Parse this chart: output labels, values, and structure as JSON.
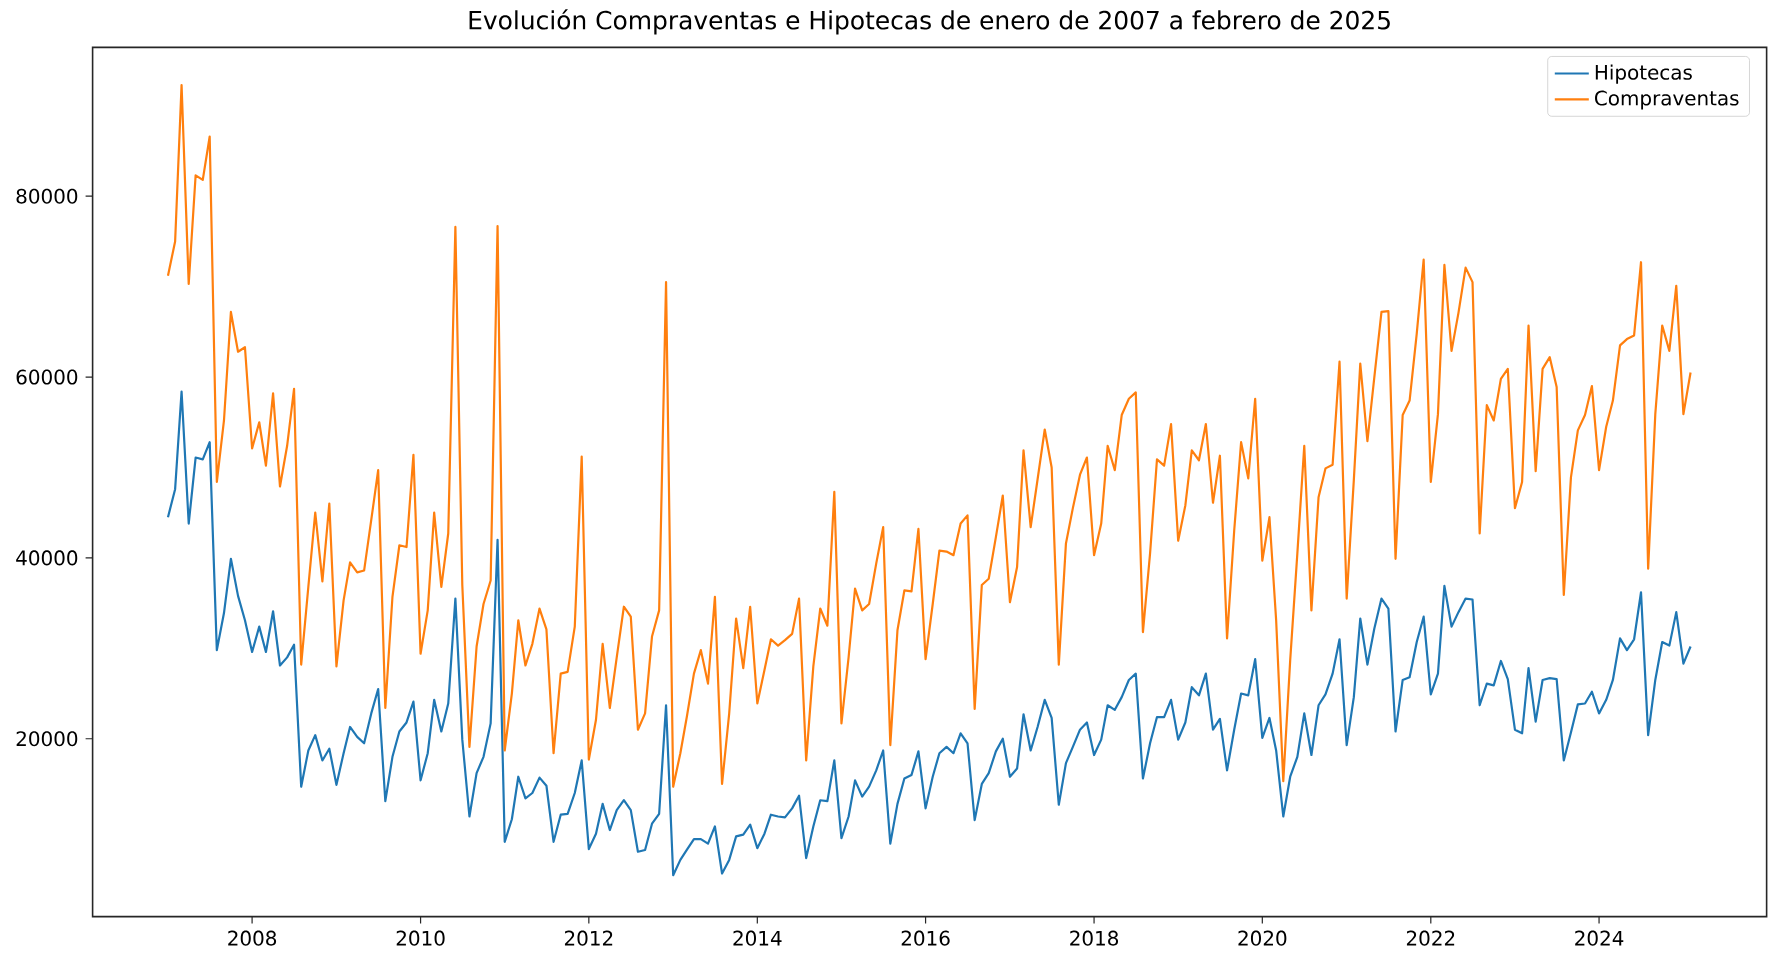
{
  "chart_data": {
    "type": "line",
    "title": "Evolución Compraventas e Hipotecas de enero de 2007 a febrero de 2025",
    "x": [
      "2007-01",
      "2007-02",
      "2007-03",
      "2007-04",
      "2007-05",
      "2007-06",
      "2007-07",
      "2007-08",
      "2007-09",
      "2007-10",
      "2007-11",
      "2007-12",
      "2008-01",
      "2008-02",
      "2008-03",
      "2008-04",
      "2008-05",
      "2008-06",
      "2008-07",
      "2008-08",
      "2008-09",
      "2008-10",
      "2008-11",
      "2008-12",
      "2009-01",
      "2009-02",
      "2009-03",
      "2009-04",
      "2009-05",
      "2009-06",
      "2009-07",
      "2009-08",
      "2009-09",
      "2009-10",
      "2009-11",
      "2009-12",
      "2010-01",
      "2010-02",
      "2010-03",
      "2010-04",
      "2010-05",
      "2010-06",
      "2010-07",
      "2010-08",
      "2010-09",
      "2010-10",
      "2010-11",
      "2010-12",
      "2011-01",
      "2011-02",
      "2011-03",
      "2011-04",
      "2011-05",
      "2011-06",
      "2011-07",
      "2011-08",
      "2011-09",
      "2011-10",
      "2011-11",
      "2011-12",
      "2012-01",
      "2012-02",
      "2012-03",
      "2012-04",
      "2012-05",
      "2012-06",
      "2012-07",
      "2012-08",
      "2012-09",
      "2012-10",
      "2012-11",
      "2012-12",
      "2013-01",
      "2013-02",
      "2013-03",
      "2013-04",
      "2013-05",
      "2013-06",
      "2013-07",
      "2013-08",
      "2013-09",
      "2013-10",
      "2013-11",
      "2013-12",
      "2014-01",
      "2014-02",
      "2014-03",
      "2014-04",
      "2014-05",
      "2014-06",
      "2014-07",
      "2014-08",
      "2014-09",
      "2014-10",
      "2014-11",
      "2014-12",
      "2015-01",
      "2015-02",
      "2015-03",
      "2015-04",
      "2015-05",
      "2015-06",
      "2015-07",
      "2015-08",
      "2015-09",
      "2015-10",
      "2015-11",
      "2015-12",
      "2016-01",
      "2016-02",
      "2016-03",
      "2016-04",
      "2016-05",
      "2016-06",
      "2016-07",
      "2016-08",
      "2016-09",
      "2016-10",
      "2016-11",
      "2016-12",
      "2017-01",
      "2017-02",
      "2017-03",
      "2017-04",
      "2017-05",
      "2017-06",
      "2017-07",
      "2017-08",
      "2017-09",
      "2017-10",
      "2017-11",
      "2017-12",
      "2018-01",
      "2018-02",
      "2018-03",
      "2018-04",
      "2018-05",
      "2018-06",
      "2018-07",
      "2018-08",
      "2018-09",
      "2018-10",
      "2018-11",
      "2018-12",
      "2019-01",
      "2019-02",
      "2019-03",
      "2019-04",
      "2019-05",
      "2019-06",
      "2019-07",
      "2019-08",
      "2019-09",
      "2019-10",
      "2019-11",
      "2019-12",
      "2020-01",
      "2020-02",
      "2020-03",
      "2020-04",
      "2020-05",
      "2020-06",
      "2020-07",
      "2020-08",
      "2020-09",
      "2020-10",
      "2020-11",
      "2020-12",
      "2021-01",
      "2021-02",
      "2021-03",
      "2021-04",
      "2021-05",
      "2021-06",
      "2021-07",
      "2021-08",
      "2021-09",
      "2021-10",
      "2021-11",
      "2021-12",
      "2022-01",
      "2022-02",
      "2022-03",
      "2022-04",
      "2022-05",
      "2022-06",
      "2022-07",
      "2022-08",
      "2022-09",
      "2022-10",
      "2022-11",
      "2022-12",
      "2023-01",
      "2023-02",
      "2023-03",
      "2023-04",
      "2023-05",
      "2023-06",
      "2023-07",
      "2023-08",
      "2023-09",
      "2023-10",
      "2023-11",
      "2023-12",
      "2024-01",
      "2024-02",
      "2024-03",
      "2024-04",
      "2024-05",
      "2024-06",
      "2024-07",
      "2024-08",
      "2024-09",
      "2024-10",
      "2024-11",
      "2024-12",
      "2025-01",
      "2025-02"
    ],
    "series": [
      {
        "name": "Hipotecas",
        "color": "#1f77b4",
        "values": [
          44500,
          47600,
          58400,
          43800,
          51100,
          50900,
          52800,
          29800,
          33900,
          39900,
          35800,
          33100,
          29600,
          32400,
          29600,
          34100,
          28100,
          29000,
          30400,
          14700,
          18700,
          20400,
          17600,
          18900,
          14900,
          18400,
          21300,
          20200,
          19500,
          22800,
          25500,
          13100,
          18000,
          20800,
          21800,
          24100,
          15400,
          18400,
          24300,
          20800,
          23900,
          35500,
          19900,
          11400,
          16200,
          18000,
          21700,
          42000,
          8600,
          11100,
          15800,
          13400,
          14000,
          15700,
          14800,
          8600,
          11600,
          11700,
          14000,
          17600,
          7800,
          9500,
          12800,
          9900,
          12100,
          13200,
          12100,
          7500,
          7700,
          10600,
          11700,
          23700,
          4900,
          6600,
          7700,
          8900,
          8900,
          8400,
          10300,
          5100,
          6600,
          9200,
          9400,
          10500,
          7900,
          9500,
          11600,
          11400,
          11300,
          12300,
          13700,
          6800,
          10300,
          13200,
          13100,
          17600,
          9000,
          11400,
          15400,
          13600,
          14700,
          16500,
          18700,
          8400,
          12800,
          15600,
          16000,
          18600,
          12300,
          15800,
          18400,
          19100,
          18400,
          20600,
          19500,
          11000,
          15000,
          16200,
          18600,
          20000,
          15800,
          16700,
          22700,
          18700,
          21300,
          24300,
          22300,
          12700,
          17300,
          19100,
          21000,
          21800,
          18200,
          19900,
          23700,
          23200,
          24600,
          26500,
          27200,
          15600,
          19500,
          22400,
          22400,
          24300,
          19900,
          21800,
          25700,
          24800,
          27200,
          21000,
          22200,
          16500,
          21000,
          25000,
          24800,
          28800,
          20100,
          22300,
          18700,
          11400,
          15800,
          18000,
          22800,
          18200,
          23700,
          24900,
          27200,
          31000,
          19300,
          24600,
          33300,
          28200,
          32200,
          35500,
          34400,
          20800,
          26500,
          26800,
          30700,
          33500,
          24900,
          27200,
          36900,
          32400,
          34000,
          35500,
          35400,
          23700,
          26100,
          25900,
          28600,
          26600,
          21000,
          20600,
          27800,
          21900,
          26500,
          26700,
          26600,
          17600,
          20700,
          23800,
          23900,
          25200,
          22800,
          24300,
          26500,
          31100,
          29800,
          31000,
          36200,
          20400,
          26500,
          30700,
          30300,
          34000,
          28300,
          30200
        ]
      },
      {
        "name": "Compraventas",
        "color": "#ff7f0e",
        "values": [
          71200,
          75000,
          92300,
          70300,
          82300,
          81800,
          86600,
          48400,
          55200,
          67200,
          62800,
          63300,
          52100,
          55000,
          50200,
          58200,
          47900,
          52400,
          58700,
          28200,
          36800,
          45000,
          37400,
          46000,
          28000,
          35300,
          39500,
          38400,
          38600,
          44200,
          49700,
          23400,
          35700,
          41400,
          41200,
          51400,
          29400,
          34200,
          45000,
          36800,
          42700,
          76600,
          37000,
          19100,
          30200,
          34900,
          37500,
          76700,
          18700,
          25000,
          33100,
          28100,
          30500,
          34400,
          32100,
          18400,
          27200,
          27400,
          32400,
          51200,
          17700,
          22100,
          30500,
          23400,
          29000,
          34600,
          33500,
          21000,
          22800,
          31300,
          34200,
          70500,
          14700,
          18400,
          22400,
          27200,
          29800,
          26100,
          35700,
          15000,
          22800,
          33300,
          27800,
          34600,
          23900,
          27600,
          31000,
          30300,
          30900,
          31600,
          35500,
          17600,
          28000,
          34400,
          32500,
          47300,
          21700,
          29000,
          36600,
          34200,
          34900,
          39400,
          43400,
          19300,
          32000,
          36400,
          36300,
          43200,
          28800,
          34900,
          40800,
          40700,
          40300,
          43800,
          44700,
          23300,
          37000,
          37700,
          42300,
          46900,
          35100,
          39000,
          51900,
          43400,
          48700,
          54200,
          50000,
          28200,
          41600,
          45500,
          49200,
          51100,
          40300,
          43800,
          52400,
          49700,
          55800,
          57600,
          58300,
          31800,
          40500,
          50900,
          50200,
          54800,
          41900,
          45800,
          51900,
          50800,
          54800,
          46100,
          51300,
          31100,
          43000,
          52800,
          48800,
          57600,
          39700,
          44500,
          33100,
          15300,
          28700,
          40500,
          52400,
          34200,
          46700,
          49900,
          50300,
          61700,
          35500,
          48600,
          61500,
          52900,
          60000,
          67200,
          67300,
          39900,
          55800,
          57400,
          64800,
          73000,
          48400,
          55900,
          72400,
          62900,
          67100,
          72100,
          70500,
          42700,
          56900,
          55200,
          59800,
          60900,
          45500,
          48400,
          65700,
          49600,
          60900,
          62200,
          58900,
          35900,
          48900,
          54100,
          55800,
          59000,
          49700,
          54500,
          57400,
          63500,
          64200,
          64600,
          72700,
          38800,
          55900,
          65700,
          62900,
          70100,
          55900,
          60500
        ]
      }
    ],
    "xlim": [
      "2006-02-08",
      "2025-12-28"
    ],
    "xticks": [
      "2008",
      "2010",
      "2012",
      "2014",
      "2016",
      "2018",
      "2020",
      "2022",
      "2024"
    ],
    "ylim": [
      330,
      96460
    ],
    "yticks": [
      20000,
      40000,
      60000,
      80000
    ],
    "legend": "top right"
  }
}
